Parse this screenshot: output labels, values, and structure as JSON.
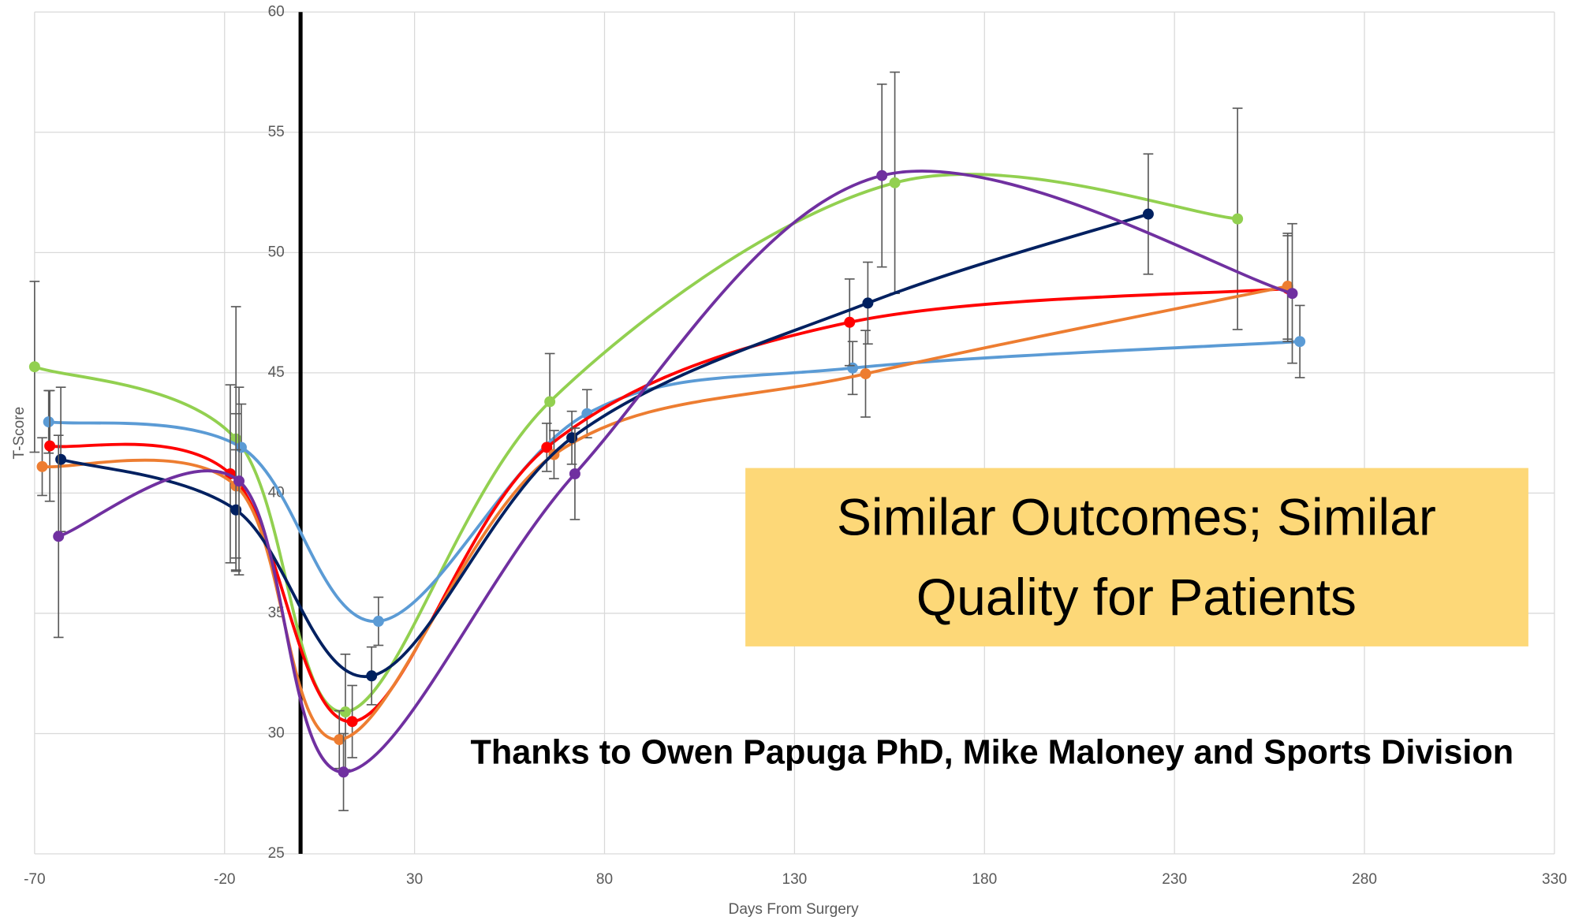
{
  "chart_data": {
    "type": "line",
    "xlabel": "Days From Surgery",
    "ylabel": "T-Score",
    "annotations": [
      [
        "Similar Outcomes; Similar",
        "Quality for Patients"
      ],
      "Thanks to Owen Papuga PhD, Mike Maloney and Sports Division"
    ],
    "xlim": [
      -70,
      330
    ],
    "xticks": [
      -70,
      -20,
      30,
      80,
      130,
      180,
      230,
      280,
      330
    ],
    "ylim": [
      25,
      60
    ],
    "yticks": [
      25,
      30,
      35,
      40,
      45,
      50,
      55,
      60
    ],
    "yaxis_crosses": 0,
    "grid": true,
    "smooth": true,
    "series": [
      {
        "color": "#92d050",
        "x": [
          -70,
          -17,
          11.8,
          65.6,
          156.4,
          246.6
        ],
        "values": [
          45.25,
          42.25,
          30.9,
          43.8,
          52.9,
          51.4
        ],
        "errors": [
          3.55,
          5.5,
          2.4,
          2.0,
          4.6,
          4.6
        ]
      },
      {
        "color": "#5b9bd5",
        "x": [
          -66.3,
          -15.6,
          20.5,
          75.4,
          145.3,
          263
        ],
        "values": [
          42.96,
          41.9,
          34.67,
          43.3,
          45.2,
          46.3
        ],
        "errors": [
          1.3,
          1.8,
          1.0,
          1.0,
          1.1,
          1.5
        ]
      },
      {
        "color": "#ff0000",
        "x": [
          -66,
          -18.5,
          13.6,
          64.8,
          144.5,
          259.8
        ],
        "values": [
          41.96,
          40.8,
          30.5,
          41.9,
          47.1,
          48.5
        ],
        "errors": [
          2.3,
          3.7,
          1.5,
          1.0,
          1.8,
          2.2
        ]
      },
      {
        "color": "#ed7d31",
        "x": [
          -68,
          -17,
          10.2,
          66.7,
          148.7,
          259.8
        ],
        "values": [
          41.1,
          40.3,
          29.75,
          41.6,
          44.96,
          48.6
        ],
        "errors": [
          1.2,
          3.0,
          1.2,
          1.0,
          1.8,
          2.2
        ]
      },
      {
        "color": "#002060",
        "x": [
          -63.1,
          -17,
          18.7,
          71.4,
          149.3,
          223.1
        ],
        "values": [
          41.4,
          39.3,
          32.4,
          42.3,
          47.9,
          51.6
        ],
        "errors": [
          3.0,
          2.5,
          1.2,
          1.1,
          1.7,
          2.5
        ]
      },
      {
        "color": "#7030a0",
        "x": [
          -63.7,
          -16.2,
          11.3,
          72.2,
          153,
          261
        ],
        "values": [
          38.2,
          40.5,
          28.4,
          40.8,
          53.2,
          48.3
        ],
        "errors": [
          4.2,
          3.9,
          1.6,
          1.9,
          3.8,
          2.9
        ]
      }
    ]
  }
}
